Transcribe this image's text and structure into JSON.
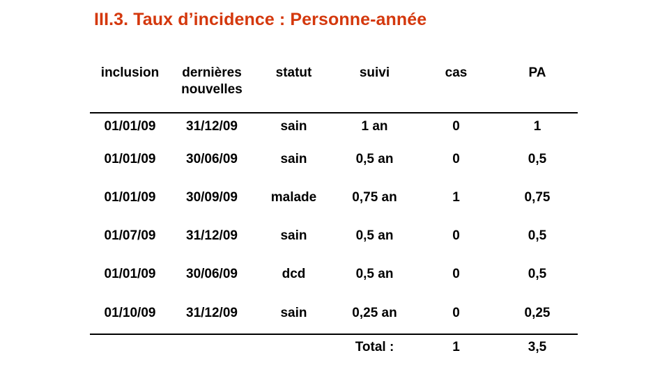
{
  "title": "III.3. Taux d’incidence : Personne-année",
  "colors": {
    "title": "#d4380d",
    "text": "#000000",
    "background": "#ffffff"
  },
  "table": {
    "headers": [
      "inclusion",
      "dernières\nnouvelles",
      "statut",
      "suivi",
      "cas",
      "PA"
    ],
    "rows": [
      [
        "01/01/09",
        "31/12/09",
        "sain",
        "1 an",
        "0",
        "1"
      ],
      [
        "01/01/09",
        "30/06/09",
        "sain",
        "0,5 an",
        "0",
        "0,5"
      ],
      [
        "01/01/09",
        "30/09/09",
        "malade",
        "0,75 an",
        "1",
        "0,75"
      ],
      [
        "01/07/09",
        "31/12/09",
        "sain",
        "0,5 an",
        "0",
        "0,5"
      ],
      [
        "01/01/09",
        "30/06/09",
        "dcd",
        "0,5 an",
        "0",
        "0,5"
      ],
      [
        "01/10/09",
        "31/12/09",
        "sain",
        "0,25 an",
        "0",
        "0,25"
      ]
    ],
    "total": {
      "label": "Total :",
      "cas": "1",
      "pa": "3,5"
    }
  }
}
